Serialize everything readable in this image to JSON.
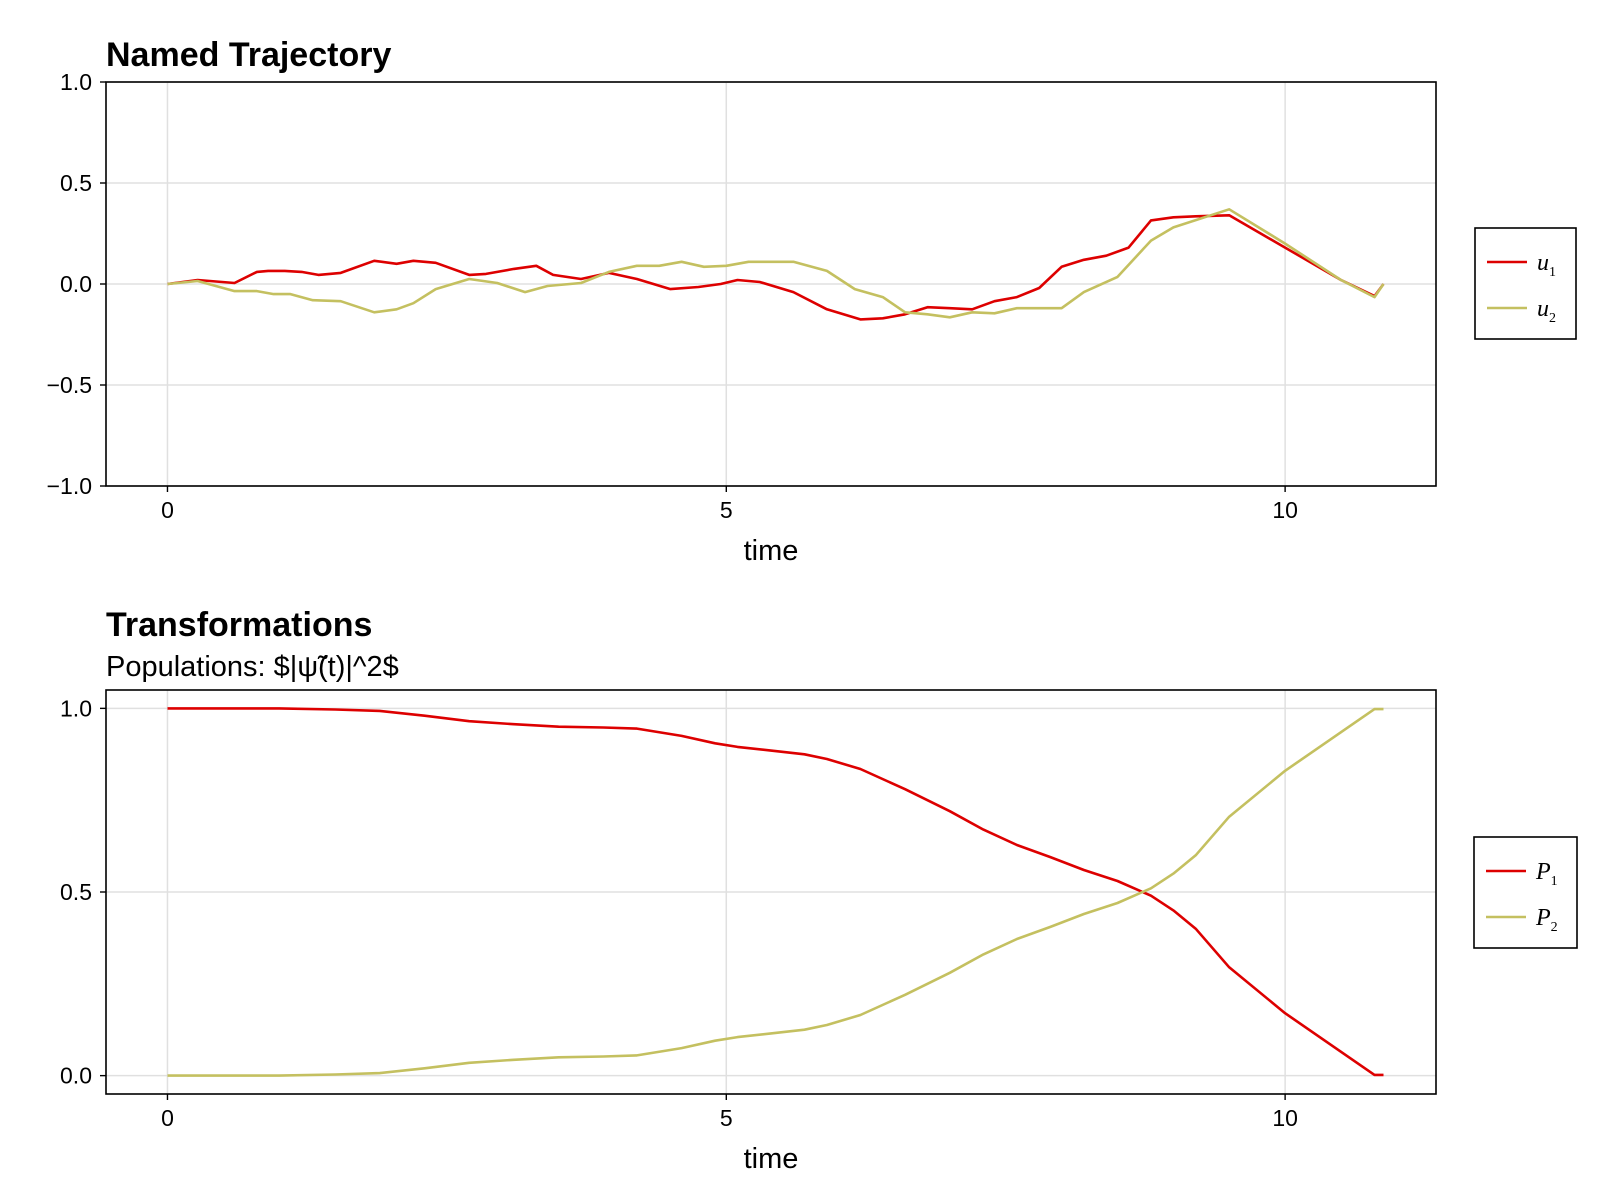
{
  "colors": {
    "series1": "#dd0000",
    "series2": "#c4c060",
    "grid": "#e0e0e0",
    "frame": "#000000"
  },
  "chart_data": [
    {
      "type": "line",
      "title": "Named Trajectory",
      "subtitle": "",
      "xlabel": "time",
      "ylabel": "",
      "xlim": [
        -0.55,
        11.35
      ],
      "ylim": [
        -1.0,
        1.0
      ],
      "xticks": [
        0,
        5,
        10
      ],
      "xtick_labels": [
        "0",
        "5",
        "10"
      ],
      "yticks": [
        1.0,
        0.5,
        0.0,
        -0.5,
        -1.0
      ],
      "ytick_labels": [
        "1.0",
        "0.5",
        "0.0",
        "−0.5",
        "−1.0"
      ],
      "grid": true,
      "legend_position": "right",
      "series": [
        {
          "name": "u",
          "subscript": "1",
          "color": "#dd0000",
          "x": [
            0.0,
            0.27,
            0.6,
            0.8,
            0.9,
            1.05,
            1.2,
            1.35,
            1.55,
            1.85,
            2.05,
            2.2,
            2.4,
            2.7,
            2.85,
            3.1,
            3.3,
            3.45,
            3.7,
            3.95,
            4.2,
            4.5,
            4.75,
            4.95,
            5.1,
            5.3,
            5.6,
            5.9,
            6.2,
            6.4,
            6.6,
            6.8,
            7.0,
            7.2,
            7.4,
            7.6,
            7.8,
            8.0,
            8.2,
            8.4,
            8.6,
            8.8,
            9.0,
            9.2,
            9.5,
            10.0,
            10.5,
            10.8,
            10.88
          ],
          "y": [
            0.0,
            0.02,
            0.005,
            0.06,
            0.065,
            0.065,
            0.06,
            0.045,
            0.055,
            0.115,
            0.1,
            0.115,
            0.105,
            0.045,
            0.05,
            0.075,
            0.09,
            0.045,
            0.025,
            0.055,
            0.025,
            -0.025,
            -0.015,
            0.0,
            0.02,
            0.01,
            -0.04,
            -0.125,
            -0.175,
            -0.17,
            -0.15,
            -0.115,
            -0.12,
            -0.125,
            -0.085,
            -0.065,
            -0.02,
            0.085,
            0.12,
            0.14,
            0.18,
            0.315,
            0.33,
            0.335,
            0.34,
            0.18,
            0.02,
            -0.06,
            0.0
          ]
        },
        {
          "name": "u",
          "subscript": "2",
          "color": "#c4c060",
          "x": [
            0.0,
            0.27,
            0.6,
            0.8,
            0.95,
            1.1,
            1.3,
            1.55,
            1.85,
            2.05,
            2.2,
            2.4,
            2.7,
            2.95,
            3.2,
            3.4,
            3.7,
            3.95,
            4.2,
            4.4,
            4.6,
            4.8,
            5.0,
            5.2,
            5.35,
            5.6,
            5.9,
            6.15,
            6.4,
            6.6,
            6.8,
            7.0,
            7.2,
            7.4,
            7.6,
            7.8,
            8.0,
            8.2,
            8.5,
            8.8,
            9.0,
            9.5,
            10.0,
            10.5,
            10.8,
            10.88
          ],
          "y": [
            0.0,
            0.015,
            -0.035,
            -0.035,
            -0.05,
            -0.05,
            -0.08,
            -0.085,
            -0.14,
            -0.125,
            -0.095,
            -0.025,
            0.025,
            0.005,
            -0.04,
            -0.01,
            0.005,
            0.06,
            0.09,
            0.09,
            0.11,
            0.085,
            0.09,
            0.11,
            0.11,
            0.11,
            0.065,
            -0.025,
            -0.065,
            -0.14,
            -0.15,
            -0.165,
            -0.14,
            -0.145,
            -0.12,
            -0.12,
            -0.12,
            -0.04,
            0.035,
            0.215,
            0.28,
            0.37,
            0.2,
            0.02,
            -0.065,
            0.0
          ]
        }
      ]
    },
    {
      "type": "line",
      "title": "Transformations",
      "subtitle": "Populations: $|ψ̃(t)|^2$",
      "xlabel": "time",
      "ylabel": "",
      "xlim": [
        -0.55,
        11.35
      ],
      "ylim": [
        -0.05,
        1.05
      ],
      "xticks": [
        0,
        5,
        10
      ],
      "xtick_labels": [
        "0",
        "5",
        "10"
      ],
      "yticks": [
        1.0,
        0.5,
        0.0
      ],
      "ytick_labels": [
        "1.0",
        "0.5",
        "0.0"
      ],
      "grid": true,
      "legend_position": "right",
      "series": [
        {
          "name": "P",
          "subscript": "1",
          "color": "#dd0000",
          "x": [
            0.0,
            0.5,
            1.0,
            1.5,
            1.9,
            2.3,
            2.7,
            3.1,
            3.5,
            3.9,
            4.2,
            4.6,
            4.9,
            5.1,
            5.4,
            5.7,
            5.9,
            6.2,
            6.6,
            7.0,
            7.3,
            7.6,
            7.9,
            8.2,
            8.5,
            8.8,
            9.0,
            9.2,
            9.5,
            10.0,
            10.5,
            10.8,
            10.88
          ],
          "y": [
            1.0,
            1.0,
            1.0,
            0.997,
            0.993,
            0.98,
            0.965,
            0.957,
            0.95,
            0.948,
            0.945,
            0.925,
            0.905,
            0.895,
            0.885,
            0.875,
            0.862,
            0.835,
            0.78,
            0.72,
            0.67,
            0.628,
            0.595,
            0.56,
            0.53,
            0.49,
            0.45,
            0.4,
            0.295,
            0.17,
            0.065,
            0.002,
            0.002
          ]
        },
        {
          "name": "P",
          "subscript": "2",
          "color": "#c4c060",
          "x": [
            0.0,
            0.5,
            1.0,
            1.5,
            1.9,
            2.3,
            2.7,
            3.1,
            3.5,
            3.9,
            4.2,
            4.6,
            4.9,
            5.1,
            5.4,
            5.7,
            5.9,
            6.2,
            6.6,
            7.0,
            7.3,
            7.6,
            7.9,
            8.2,
            8.5,
            8.8,
            9.0,
            9.2,
            9.5,
            10.0,
            10.5,
            10.8,
            10.88
          ],
          "y": [
            0.0,
            0.0,
            0.0,
            0.003,
            0.007,
            0.02,
            0.035,
            0.043,
            0.05,
            0.052,
            0.055,
            0.075,
            0.095,
            0.105,
            0.115,
            0.125,
            0.138,
            0.165,
            0.22,
            0.28,
            0.33,
            0.372,
            0.405,
            0.44,
            0.47,
            0.51,
            0.55,
            0.6,
            0.705,
            0.83,
            0.935,
            0.998,
            0.998
          ]
        }
      ]
    }
  ]
}
